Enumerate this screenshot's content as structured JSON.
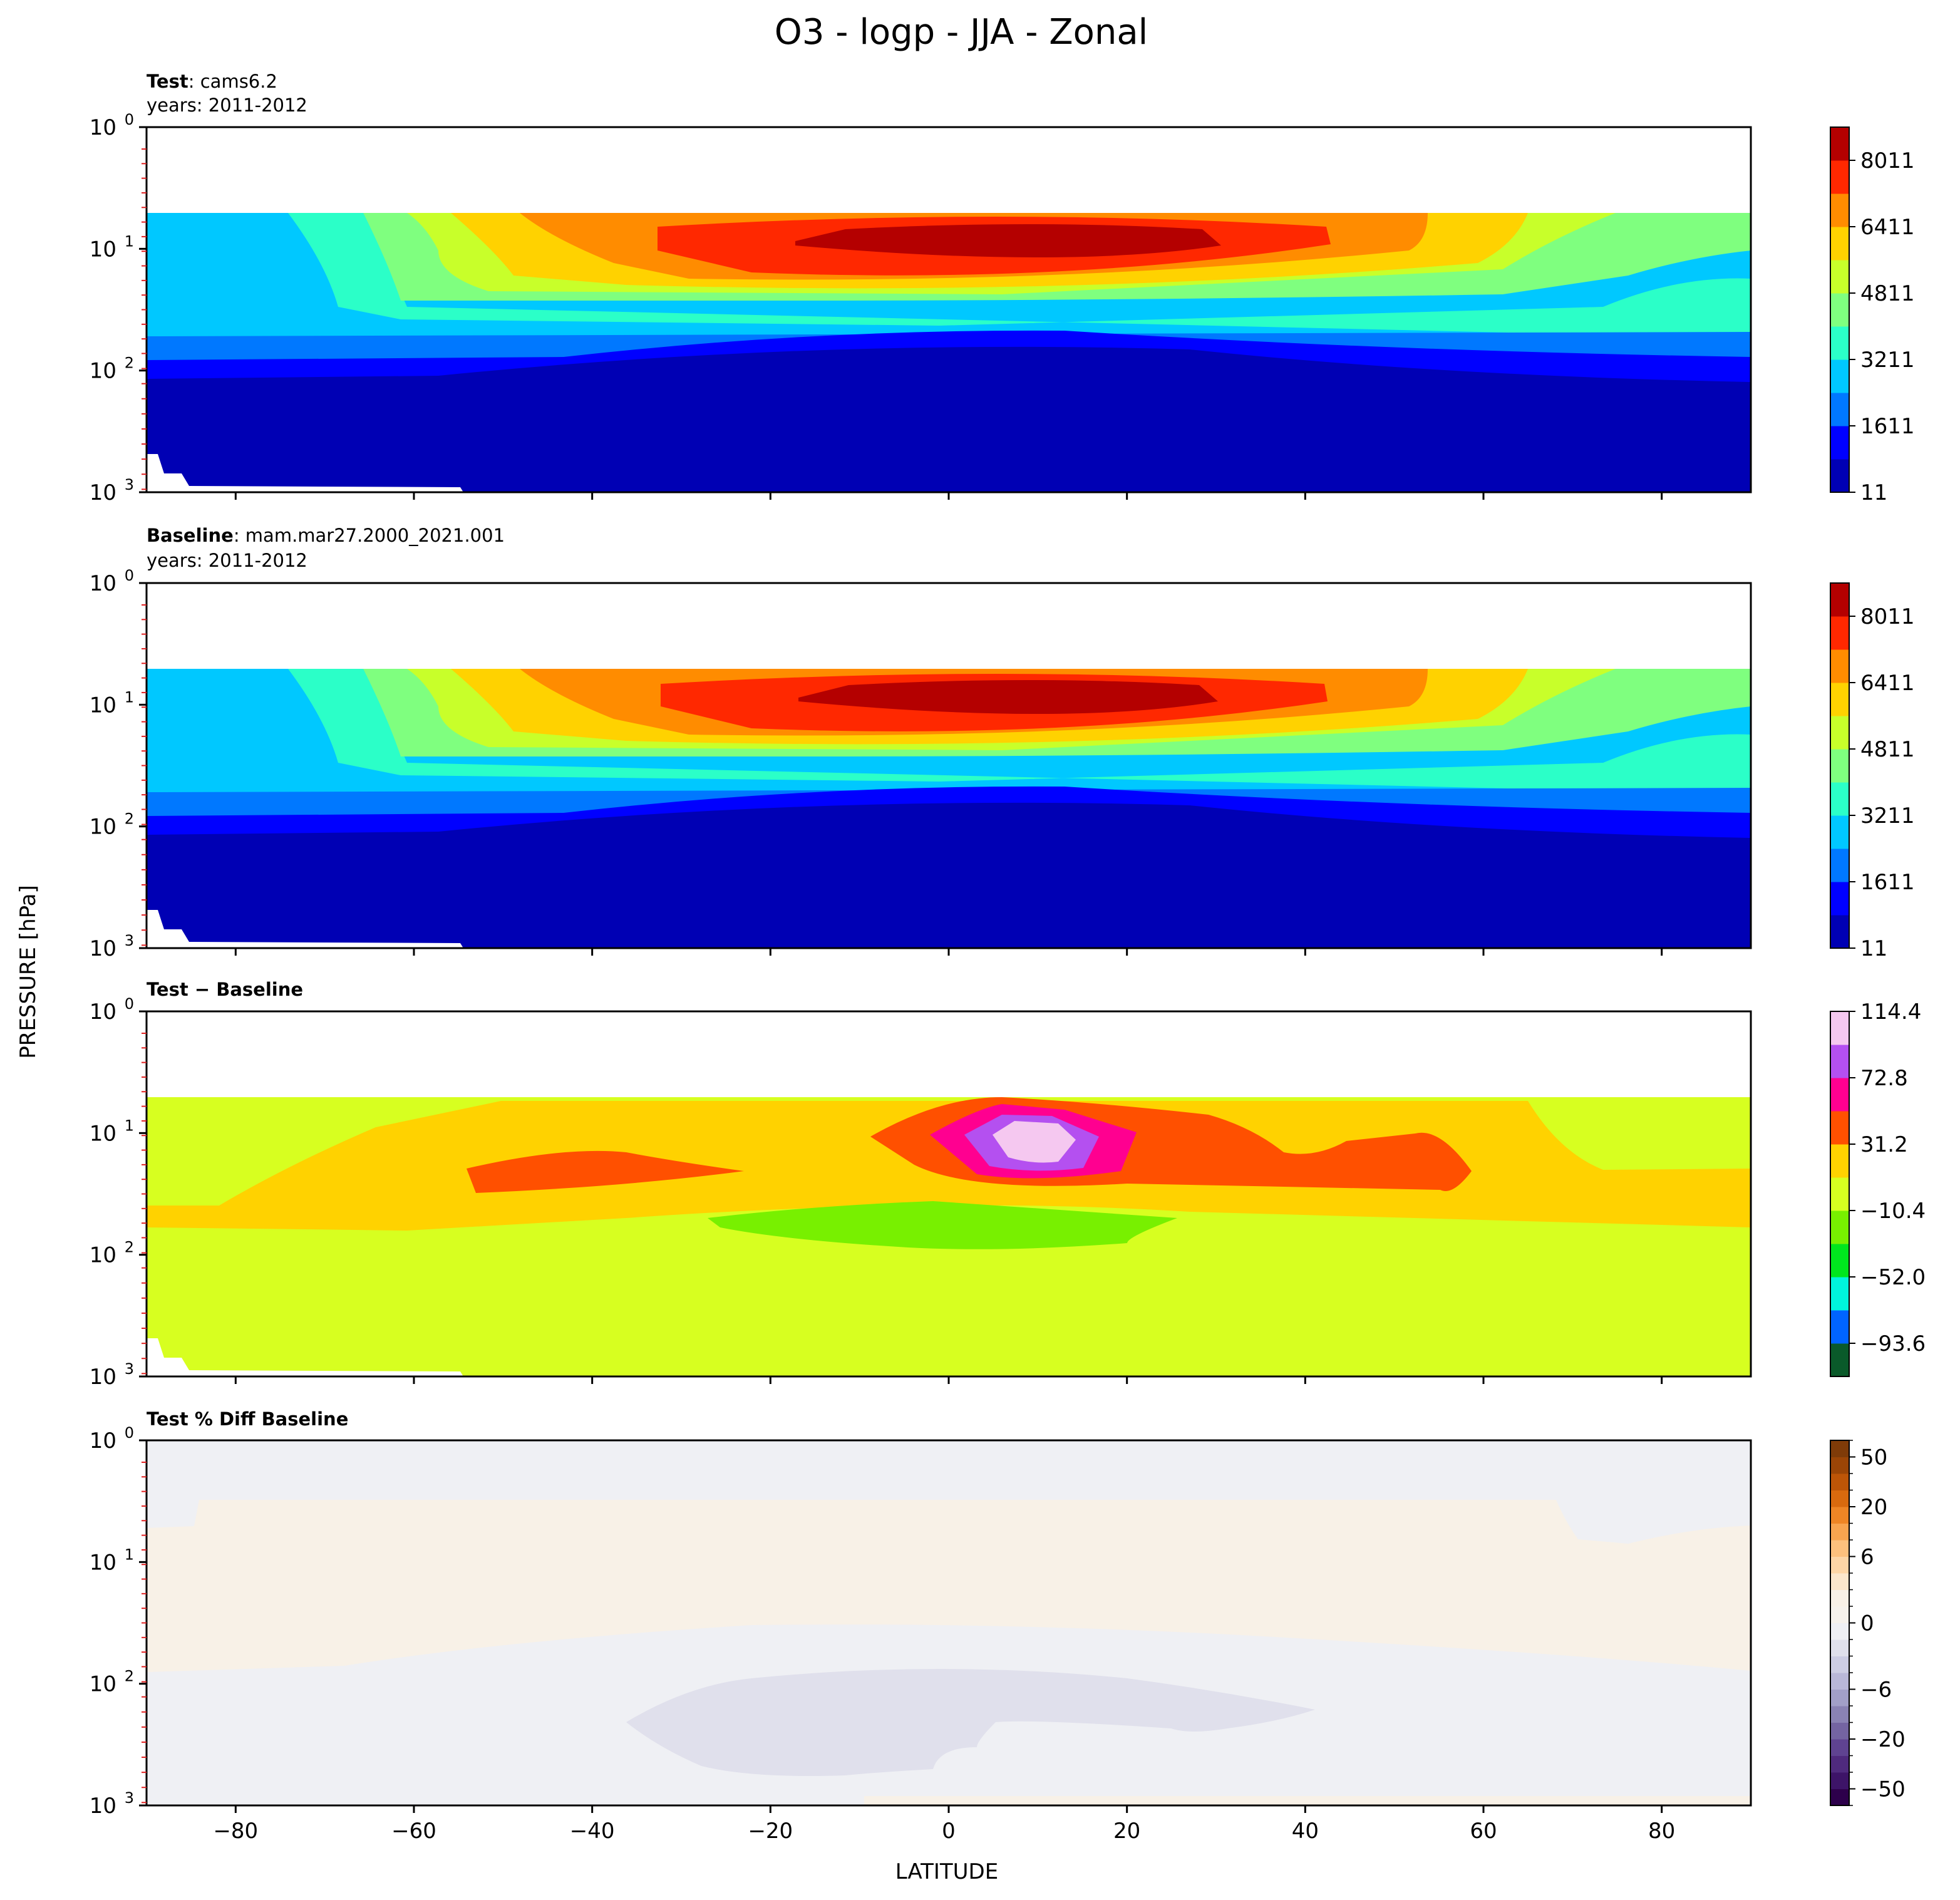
{
  "figure": {
    "title": "O3 - logp - JJA - Zonal",
    "ylabel": "PRESSURE [hPa]",
    "xlabel": "LATITUDE"
  },
  "panels": [
    {
      "id": "test",
      "label_bold": "Test",
      "label_rest": ": cams6.2",
      "years": "years: 2011-2012",
      "colorbar_ticks": [
        "8011",
        "6411",
        "4811",
        "3211",
        "1611",
        "11"
      ]
    },
    {
      "id": "baseline",
      "label_bold": "Baseline",
      "label_rest": ": mam.mar27.2000_2021.001",
      "years": "years: 2011-2012",
      "colorbar_ticks": [
        "8011",
        "6411",
        "4811",
        "3211",
        "1611",
        "11"
      ]
    },
    {
      "id": "diff",
      "label_bold": "Test − Baseline",
      "label_rest": "",
      "years": "",
      "colorbar_ticks": [
        "114.4",
        "72.8",
        "31.2",
        "−10.4",
        "−52.0",
        "−93.6"
      ]
    },
    {
      "id": "pctdiff",
      "label_bold": "Test % Diff Baseline",
      "label_rest": "",
      "years": "",
      "colorbar_ticks": [
        "50",
        "20",
        "6",
        "0",
        "−6",
        "−20",
        "−50"
      ]
    }
  ],
  "axis": {
    "y_ticks": [
      {
        "base": "10",
        "exp": "0"
      },
      {
        "base": "10",
        "exp": "1"
      },
      {
        "base": "10",
        "exp": "2"
      },
      {
        "base": "10",
        "exp": "3"
      }
    ],
    "x_ticks": [
      "−80",
      "−60",
      "−40",
      "−20",
      "0",
      "20",
      "40",
      "60",
      "80"
    ]
  },
  "chart_data": {
    "type": "contour",
    "title": "O3 - logp - JJA - Zonal",
    "xlabel": "LATITUDE",
    "ylabel": "PRESSURE [hPa]",
    "xlim": [
      -90,
      90
    ],
    "ylim_log10_hPa": [
      0,
      3
    ],
    "y_scale": "log",
    "panels": [
      {
        "name": "Test: cams6.2",
        "levels": [
          11,
          811,
          1611,
          2411,
          3211,
          4011,
          4811,
          5611,
          6411,
          7211,
          8011,
          8811
        ],
        "colors": [
          "#0000b4",
          "#0000ff",
          "#0078ff",
          "#00c8ff",
          "#2bffc8",
          "#7fff7f",
          "#c8ff2a",
          "#ffd200",
          "#ff8c00",
          "#ff2800",
          "#b40000"
        ],
        "features": "O3 maximum near 10 hPa over 0-20N; low values below 100 hPa"
      },
      {
        "name": "Baseline: mam.mar27.2000_2021.001",
        "levels": [
          11,
          811,
          1611,
          2411,
          3211,
          4011,
          4811,
          5611,
          6411,
          7211,
          8011,
          8811
        ],
        "colors": [
          "#0000b4",
          "#0000ff",
          "#0078ff",
          "#00c8ff",
          "#2bffc8",
          "#7fff7f",
          "#c8ff2a",
          "#ffd200",
          "#ff8c00",
          "#ff2800",
          "#b40000"
        ]
      },
      {
        "name": "Test - Baseline",
        "levels": [
          -114.4,
          -93.6,
          -72.8,
          -52.0,
          -31.2,
          -10.4,
          10.4,
          31.2,
          52.0,
          72.8,
          93.6,
          114.4
        ],
        "colors": [
          "#0a5a2a",
          "#0064ff",
          "#00f5dc",
          "#00e61e",
          "#78f000",
          "#d7ff20",
          "#ffd200",
          "#ff5000",
          "#ff0090",
          "#b450f0",
          "#f5c8f0"
        ],
        "features": "max difference (>93.6) near 10N, 10 hPa"
      },
      {
        "name": "Test % Diff Baseline",
        "levels": [
          -100,
          -50,
          -40,
          -30,
          -20,
          -10,
          -8,
          -6,
          -4,
          -2,
          -1,
          0,
          1,
          2,
          4,
          6,
          8,
          10,
          20,
          30,
          40,
          50,
          100
        ],
        "features": "values within -6 to 6 percent across domain"
      }
    ]
  }
}
